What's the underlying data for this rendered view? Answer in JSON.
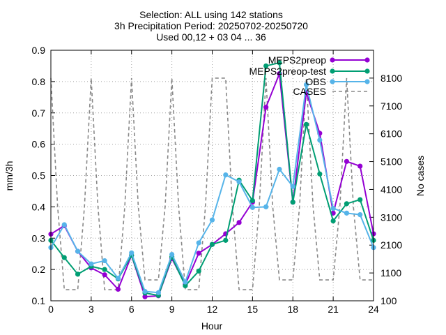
{
  "chart_data": {
    "type": "line",
    "title": [
      "Selection: ALL using   142 stations",
      "3h Precipitation   Period: 20250702-20250720",
      "Used 00,12 + 03 04 ... 36"
    ],
    "xlabel": "Hour",
    "ylabel": "mm/3h",
    "y2label": "No cases",
    "xlim": [
      0,
      24
    ],
    "ylim": [
      0.1,
      0.9
    ],
    "y2lim": [
      100,
      9100
    ],
    "xticks": [
      "0",
      "3",
      "6",
      "9",
      "12",
      "15",
      "18",
      "21",
      "24"
    ],
    "yticks": [
      "0.1",
      "0.2",
      "0.3",
      "0.4",
      "0.5",
      "0.6",
      "0.7",
      "0.8",
      "0.9"
    ],
    "y2ticks": [
      "100",
      "1100",
      "2100",
      "3100",
      "4100",
      "5100",
      "6100",
      "7100",
      "8100"
    ],
    "legend_position": "top-right",
    "x": [
      0,
      1,
      2,
      3,
      4,
      5,
      6,
      7,
      8,
      9,
      10,
      11,
      12,
      13,
      14,
      15,
      16,
      17,
      18,
      19,
      20,
      21,
      22,
      23,
      24
    ],
    "series": [
      {
        "name": "MEPS2preop",
        "color": "#9400d3",
        "marker": "circle",
        "values": [
          0.313,
          0.34,
          0.258,
          0.205,
          0.183,
          0.137,
          0.245,
          0.113,
          0.116,
          0.235,
          0.152,
          0.252,
          0.28,
          0.314,
          0.35,
          0.415,
          0.718,
          0.825,
          0.415,
          0.765,
          0.635,
          0.38,
          0.545,
          0.53,
          0.314
        ]
      },
      {
        "name": "MEPS2preop-test",
        "color": "#009e73",
        "marker": "circle",
        "values": [
          0.293,
          0.238,
          0.185,
          0.21,
          0.2,
          0.17,
          0.245,
          0.125,
          0.117,
          0.24,
          0.148,
          0.195,
          0.28,
          0.293,
          0.485,
          0.42,
          0.85,
          0.86,
          0.415,
          0.663,
          0.505,
          0.355,
          0.41,
          0.423,
          0.293
        ]
      },
      {
        "name": "OBS",
        "color": "#56b4e9",
        "marker": "circle",
        "values": [
          0.27,
          0.343,
          0.258,
          0.218,
          0.228,
          0.172,
          0.253,
          0.13,
          0.126,
          0.248,
          0.16,
          0.285,
          0.358,
          0.502,
          0.48,
          0.398,
          0.4,
          0.52,
          0.465,
          0.79,
          0.613,
          0.395,
          0.38,
          0.375,
          0.27
        ]
      },
      {
        "name": "CASES",
        "color": "#888888",
        "dashed": true,
        "axis": "y2",
        "x": [
          0,
          0.5,
          1,
          1.5,
          2,
          2.5,
          3,
          3.5,
          4,
          4.5,
          5,
          5.5,
          6,
          6.5,
          7,
          7.5,
          8,
          8.5,
          9,
          9.5,
          10,
          10.5,
          11,
          11.5,
          12,
          12.5,
          13,
          13.5,
          14,
          14.5,
          15,
          15.5,
          16,
          16.5,
          17,
          17.5,
          18,
          18.5,
          19,
          19.5,
          20,
          20.5,
          21,
          21.5,
          22,
          22.5,
          23,
          23.5,
          24
        ],
        "values": [
          8100,
          3500,
          500,
          500,
          500,
          3500,
          8100,
          3500,
          500,
          500,
          500,
          3500,
          8100,
          3500,
          850,
          850,
          850,
          3500,
          8100,
          3500,
          500,
          500,
          500,
          3500,
          8100,
          8100,
          8100,
          3500,
          500,
          500,
          500,
          3500,
          8100,
          3500,
          850,
          850,
          850,
          3500,
          8100,
          3500,
          850,
          850,
          850,
          3500,
          8100,
          3500,
          850,
          850,
          850
        ]
      }
    ]
  }
}
